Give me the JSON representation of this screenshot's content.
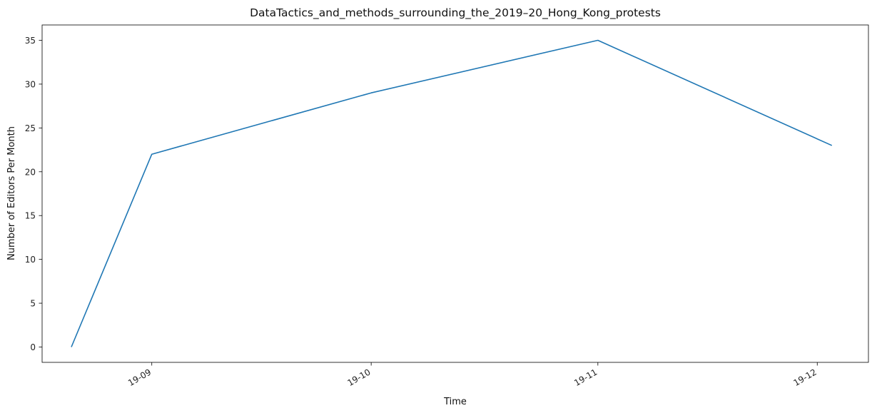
{
  "chart_data": {
    "type": "line",
    "title": "DataTactics_and_methods_surrounding_the_2019–20_Hong_Kong_protests",
    "xlabel": "Time",
    "ylabel": "Number of Editors Per Month",
    "x": [
      "2019-08-21",
      "2019-09-01",
      "2019-10-01",
      "2019-11-01",
      "2019-12-03"
    ],
    "series": [
      {
        "values": [
          0,
          22,
          29,
          35,
          23
        ]
      }
    ],
    "xlim": [
      "2019-08-17",
      "2019-12-08"
    ],
    "ylim": [
      -1.75,
      36.75
    ],
    "x_ticks": [
      {
        "date": "2019-09-01",
        "label": "19-09"
      },
      {
        "date": "2019-10-01",
        "label": "19-10"
      },
      {
        "date": "2019-11-01",
        "label": "19-11"
      },
      {
        "date": "2019-12-01",
        "label": "19-12"
      }
    ],
    "y_ticks": [
      0,
      5,
      10,
      15,
      20,
      25,
      30,
      35
    ],
    "grid": false,
    "line_color": "#1f77b4"
  }
}
